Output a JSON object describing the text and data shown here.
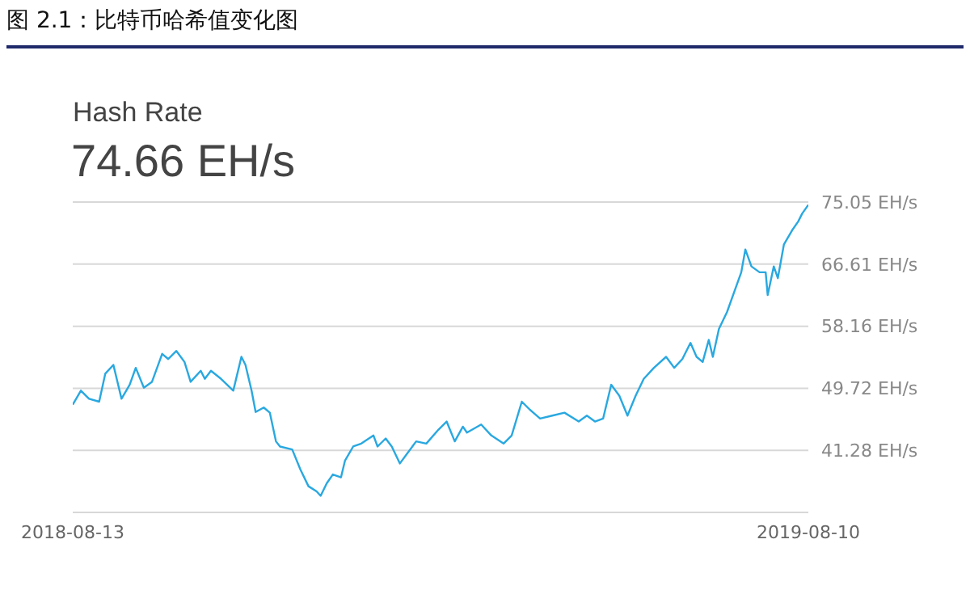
{
  "chart_data": {
    "type": "line",
    "title": "图 2.1：比特币哈希值变化图",
    "subtitle": "Hash Rate",
    "annotations": [
      "74.66 EH/s"
    ],
    "x": [
      "2018-08-13",
      "2018-08-17",
      "2018-08-21",
      "2018-08-26",
      "2018-08-29",
      "2018-09-02",
      "2018-09-06",
      "2018-09-10",
      "2018-09-13",
      "2018-09-17",
      "2018-09-21",
      "2018-09-26",
      "2018-09-29",
      "2018-10-03",
      "2018-10-07",
      "2018-10-10",
      "2018-10-15",
      "2018-10-17",
      "2018-10-20",
      "2018-10-25",
      "2018-10-31",
      "2018-11-04",
      "2018-11-06",
      "2018-11-09",
      "2018-11-11",
      "2018-11-15",
      "2018-11-18",
      "2018-11-21",
      "2018-11-23",
      "2018-11-29",
      "2018-12-03",
      "2018-12-07",
      "2018-12-11",
      "2018-12-13",
      "2018-12-16",
      "2018-12-19",
      "2018-12-23",
      "2018-12-25",
      "2018-12-29",
      "2019-01-02",
      "2019-01-08",
      "2019-01-10",
      "2019-01-14",
      "2019-01-17",
      "2019-01-21",
      "2019-01-25",
      "2019-01-29",
      "2019-02-03",
      "2019-02-09",
      "2019-02-13",
      "2019-02-17",
      "2019-02-21",
      "2019-02-23",
      "2019-03-02",
      "2019-03-07",
      "2019-03-13",
      "2019-03-17",
      "2019-03-22",
      "2019-03-26",
      "2019-03-31",
      "2019-04-06",
      "2019-04-12",
      "2019-04-19",
      "2019-04-23",
      "2019-04-27",
      "2019-05-01",
      "2019-05-05",
      "2019-05-09",
      "2019-05-13",
      "2019-05-17",
      "2019-05-21",
      "2019-05-26",
      "2019-06-01",
      "2019-06-05",
      "2019-06-09",
      "2019-06-13",
      "2019-06-16",
      "2019-06-19",
      "2019-06-22",
      "2019-06-24",
      "2019-06-27",
      "2019-07-01",
      "2019-07-05",
      "2019-07-08",
      "2019-07-10",
      "2019-07-13",
      "2019-07-17",
      "2019-07-20",
      "2019-07-21",
      "2019-07-24",
      "2019-07-26",
      "2019-07-29",
      "2019-08-02",
      "2019-08-05",
      "2019-08-07",
      "2019-08-10"
    ],
    "series": [
      {
        "color": "#29a8e0",
        "values": [
          47.5,
          49.4,
          48.3,
          47.9,
          51.7,
          52.9,
          48.3,
          50.2,
          52.5,
          49.8,
          50.6,
          54.4,
          53.7,
          54.8,
          53.3,
          50.6,
          52.1,
          51.0,
          52.1,
          51.0,
          49.4,
          54.0,
          52.9,
          49.4,
          46.5,
          47.1,
          46.4,
          42.5,
          41.8,
          41.4,
          38.7,
          36.4,
          35.7,
          35.1,
          36.8,
          38.0,
          37.6,
          39.9,
          41.8,
          42.2,
          43.3,
          41.8,
          42.9,
          41.8,
          39.5,
          41.0,
          42.5,
          42.2,
          44.1,
          45.2,
          42.5,
          44.5,
          43.7,
          44.8,
          43.3,
          42.2,
          43.3,
          47.9,
          46.8,
          45.6,
          46.0,
          46.4,
          45.2,
          46.0,
          45.2,
          45.6,
          50.2,
          48.7,
          46.0,
          48.7,
          51.0,
          52.5,
          54.0,
          52.5,
          53.7,
          55.9,
          54.0,
          53.3,
          56.3,
          54.0,
          57.8,
          60.1,
          63.2,
          65.5,
          68.6,
          66.3,
          65.5,
          65.5,
          62.4,
          66.3,
          64.7,
          69.3,
          71.2,
          72.4,
          73.5,
          74.66
        ]
      }
    ],
    "xlim": [
      "2018-08-13",
      "2019-08-10"
    ],
    "xticks": [
      "2018-08-13",
      "2019-08-10"
    ],
    "ylim": [
      32.84,
      75.05
    ],
    "yticks": [
      {
        "value": 32.84,
        "label": null
      },
      {
        "value": 41.28,
        "label": "41.28 EH/s"
      },
      {
        "value": 49.72,
        "label": "49.72 EH/s"
      },
      {
        "value": 58.16,
        "label": "58.16 EH/s"
      },
      {
        "value": 66.61,
        "label": "66.61 EH/s"
      },
      {
        "value": 75.05,
        "label": "75.05 EH/s"
      }
    ],
    "grid": "y",
    "marker": "none",
    "line_style": "solid"
  }
}
